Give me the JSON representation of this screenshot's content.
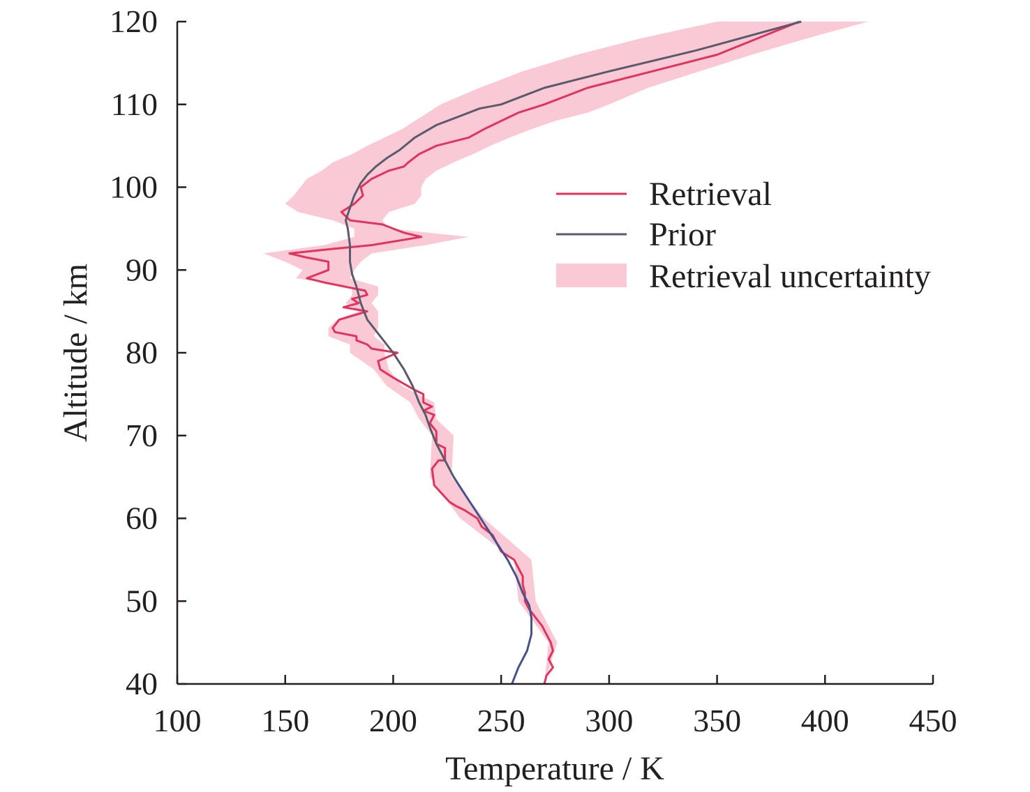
{
  "chart_data": {
    "type": "line",
    "title": "",
    "xlabel": "Temperature / K",
    "ylabel": "Altitude / km",
    "xlim": [
      100,
      450
    ],
    "ylim": [
      40,
      120
    ],
    "xticks": [
      100,
      150,
      200,
      250,
      300,
      350,
      400,
      450
    ],
    "yticks": [
      40,
      50,
      60,
      70,
      80,
      90,
      100,
      110,
      120
    ],
    "grid": false,
    "legend_position": "upper-right",
    "colors": {
      "retrieval": "#e0335e",
      "prior": "#5a5a6a",
      "prior_low": "#3a4fa0",
      "uncertainty": "#f7b8c8",
      "axis": "#231f20"
    },
    "series": [
      {
        "name": "Retrieval",
        "x": [
          270,
          271,
          274,
          272,
          274,
          273,
          271,
          269,
          266,
          263,
          261,
          261,
          260,
          260,
          258,
          256,
          250,
          248,
          246,
          241,
          239,
          236,
          233,
          229,
          226,
          219,
          218,
          221,
          224,
          224,
          220,
          220,
          217,
          219,
          214,
          218,
          214,
          214,
          210,
          200,
          194,
          193,
          202,
          190,
          188,
          183,
          183,
          173,
          172,
          175,
          188,
          177,
          184,
          181,
          188,
          187,
          168,
          160,
          170,
          170,
          160,
          152,
          170,
          190,
          213,
          205,
          200,
          195,
          180,
          176,
          182,
          186,
          185,
          190,
          198,
          205,
          207,
          212,
          220,
          235,
          242,
          250,
          258,
          270,
          290,
          320,
          350,
          388
        ],
        "y": [
          40,
          41,
          42,
          43,
          44,
          45,
          46,
          47,
          48,
          49,
          50,
          51,
          52,
          53,
          54,
          55,
          56,
          57,
          58,
          59,
          60,
          60.5,
          61,
          61.5,
          62,
          64,
          66,
          67,
          67,
          68.5,
          69,
          70.5,
          71.5,
          72.5,
          73,
          73.5,
          74,
          75,
          75.5,
          77,
          78,
          79,
          80,
          80.5,
          81,
          81.5,
          82,
          82.5,
          83,
          84,
          85,
          85.5,
          86,
          86.5,
          87,
          87.5,
          88.5,
          89,
          90,
          91,
          91.5,
          92,
          92.5,
          93,
          94,
          94.5,
          95,
          95.5,
          96,
          97,
          98,
          99,
          100,
          101,
          102,
          102.5,
          103,
          104,
          105,
          106,
          107,
          108,
          109,
          110,
          112,
          114,
          116,
          120
        ]
      },
      {
        "name": "Prior",
        "x": [
          255,
          258,
          262,
          263,
          264,
          264,
          263,
          260,
          257,
          253,
          248,
          243,
          238,
          233,
          228,
          224,
          220,
          217,
          215,
          212,
          209,
          205,
          200,
          194,
          188,
          185,
          183,
          181,
          180,
          180,
          179,
          178,
          180,
          182,
          185,
          188,
          192,
          197,
          203,
          210,
          220,
          230,
          240,
          250,
          270,
          300,
          340,
          389
        ],
        "y": [
          40,
          42,
          44,
          45,
          46,
          48,
          49.5,
          51,
          53,
          55,
          57,
          59,
          61,
          63,
          65,
          67,
          69,
          71,
          72.5,
          74,
          76,
          78,
          80,
          82,
          84,
          86,
          88,
          89.5,
          91,
          93,
          95,
          96,
          97.5,
          99,
          100.5,
          101.5,
          102.5,
          103.5,
          104.5,
          106,
          107.5,
          108.5,
          109.5,
          110,
          112,
          114,
          116.5,
          120
        ]
      }
    ],
    "uncertainty": {
      "name": "Retrieval uncertainty",
      "y": [
        40,
        45,
        50,
        55,
        60,
        65,
        70,
        72,
        74,
        76,
        78,
        80,
        81,
        82,
        83,
        84,
        85,
        86,
        87,
        88,
        89,
        90,
        91,
        92,
        93,
        94,
        95,
        96,
        97,
        98,
        99,
        100,
        101,
        102,
        103,
        104,
        105,
        106,
        107,
        108,
        109,
        110,
        112,
        114,
        116,
        118,
        120
      ],
      "lower": [
        270,
        272,
        258,
        256,
        231,
        217,
        218,
        212,
        208,
        197,
        191,
        180,
        180,
        170,
        170,
        174,
        184,
        178,
        181,
        181,
        155,
        158,
        150,
        140,
        168,
        182,
        182,
        172,
        156,
        150,
        154,
        157,
        160,
        167,
        172,
        181,
        188,
        196,
        204,
        210,
        216,
        222,
        240,
        260,
        285,
        315,
        350
      ],
      "upper": [
        270,
        276,
        266,
        264,
        242,
        227,
        228,
        220,
        219,
        204,
        198,
        196,
        196,
        191,
        193,
        193,
        193,
        190,
        193,
        193,
        180,
        182,
        185,
        190,
        215,
        235,
        198,
        195,
        198,
        210,
        213,
        213,
        215,
        220,
        228,
        237,
        245,
        254,
        264,
        275,
        290,
        300,
        318,
        342,
        366,
        392,
        420
      ]
    }
  },
  "legend": {
    "retrieval_label": "Retrieval",
    "prior_label": "Prior",
    "uncertainty_label": "Retrieval uncertainty"
  }
}
